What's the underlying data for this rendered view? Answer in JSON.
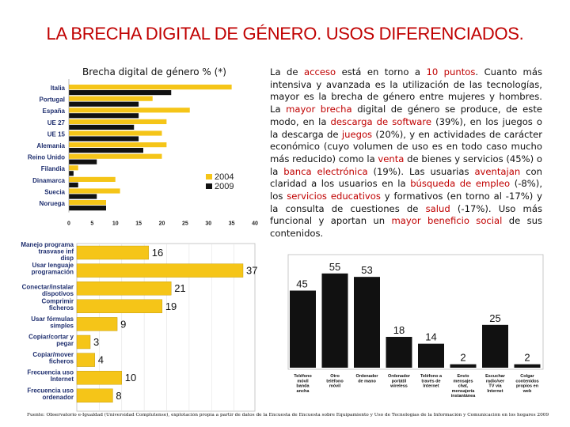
{
  "page_title": "LA BRECHA DIGITAL DE GÉNERO. USOS DIFERENCIADOS.",
  "colors": {
    "title": "#c00000",
    "highlight": "#c00000",
    "bar2004": "#f5c518",
    "bar2009": "#111111",
    "bar_orange": "#f5c518"
  },
  "chart_data": [
    {
      "type": "bar",
      "orientation": "horizontal",
      "title": "Brecha digital de género % (*)",
      "categories": [
        "Italia",
        "Portugal",
        "España",
        "UE 27",
        "UE 15",
        "Alemania",
        "Reino Unido",
        "Filandia",
        "Dinamarca",
        "Suecia",
        "Noruega"
      ],
      "series": [
        {
          "name": "2004",
          "values": [
            35,
            18,
            26,
            21,
            20,
            21,
            20,
            2,
            10,
            11,
            8
          ]
        },
        {
          "name": "2009",
          "values": [
            22,
            15,
            15,
            14,
            15,
            16,
            6,
            1,
            2,
            6,
            8
          ]
        }
      ],
      "xlim": [
        0,
        40
      ],
      "xticks": [
        0,
        5,
        10,
        15,
        20,
        25,
        30,
        35,
        40
      ],
      "legend": "right"
    },
    {
      "type": "bar",
      "orientation": "horizontal",
      "title": "",
      "categories": [
        "Manejo programa trasvase inf disp",
        "Usar lenguaje programación",
        "Conectar/instalar dispotivos",
        "Comprimir ficheros",
        "Usar fórmulas simples",
        "Copiar/cortar y pegar",
        "Copiar/mover ficheros",
        "Frecuencia uso Internet",
        "Frecuencia uso ordenador"
      ],
      "values": [
        16,
        37,
        21,
        19,
        9,
        3,
        4,
        10,
        8
      ],
      "xlim": [
        0,
        37
      ]
    },
    {
      "type": "bar",
      "orientation": "vertical",
      "title": "",
      "categories": [
        "Teléfono móvil banda ancha",
        "Otro teléfono móvil",
        "Ordenador de mano",
        "Ordenador portátil wireless",
        "Teléfono a través de Internet",
        "Envío mensajes chat, mensajería instantánea",
        "Escuchar radio/ver TV vía Internet",
        "Colgar contenidos propios en web"
      ],
      "values": [
        45,
        55,
        53,
        18,
        14,
        2,
        25,
        2
      ],
      "ylim": [
        0,
        60
      ]
    }
  ],
  "paragraph": [
    {
      "t": "La de ",
      "h": false
    },
    {
      "t": "acceso",
      "h": true
    },
    {
      "t": " está en torno a ",
      "h": false
    },
    {
      "t": "10 puntos",
      "h": true
    },
    {
      "t": ". Cuanto más intensiva y avanzada es la utilización de las tecnologías, mayor es la brecha de género entre mujeres y hombres. La ",
      "h": false
    },
    {
      "t": "mayor brecha",
      "h": true
    },
    {
      "t": " digital de género se produce, de este modo, en la ",
      "h": false
    },
    {
      "t": "descarga de software",
      "h": true
    },
    {
      "t": " (39%), en los juegos o la descarga de ",
      "h": false
    },
    {
      "t": "juegos",
      "h": true
    },
    {
      "t": " (20%), y en actividades de carácter económico (cuyo volumen de uso es en todo caso mucho más reducido) como la ",
      "h": false
    },
    {
      "t": "venta",
      "h": true
    },
    {
      "t": " de bienes y servicios (45%) o la ",
      "h": false
    },
    {
      "t": "banca electrónica",
      "h": true
    },
    {
      "t": " (19%). Las usuarias ",
      "h": false
    },
    {
      "t": "aventajan",
      "h": true
    },
    {
      "t": " con claridad a los usuarios en la ",
      "h": false
    },
    {
      "t": "búsqueda de empleo",
      "h": true
    },
    {
      "t": " (-8%), los ",
      "h": false
    },
    {
      "t": "servicios educativos",
      "h": true
    },
    {
      "t": " y formativos (en torno al -17%) y la consulta de cuestiones de ",
      "h": false
    },
    {
      "t": "salud",
      "h": true
    },
    {
      "t": " (-17%). Uso más funcional y aportan un ",
      "h": false
    },
    {
      "t": "mayor beneficio social",
      "h": true
    },
    {
      "t": " de sus contenidos.",
      "h": false
    }
  ],
  "source": "Fuente: Observatorio e-Igualdad (Universidad Complutense), explotación propia a partir de datos de la Encuesta de Encuesta sobre Equipamiento y Uso de Tecnologías de la Información y Comunicación en los hogares 2009 (INE)"
}
